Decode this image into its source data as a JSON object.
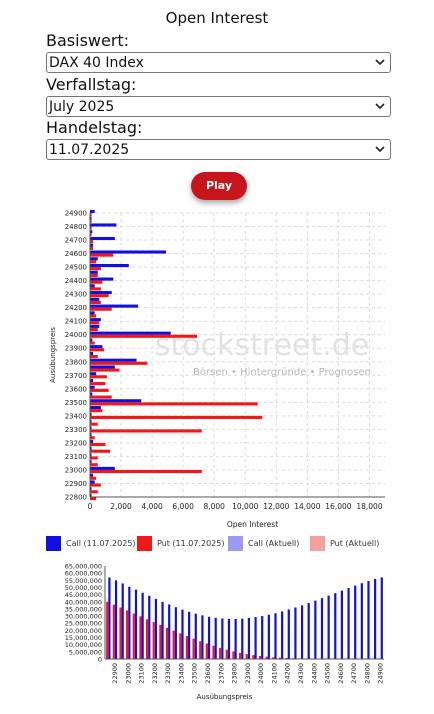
{
  "page": {
    "title": "Open Interest"
  },
  "form": {
    "underlying_label": "Basiswert:",
    "underlying_value": "DAX 40 Index",
    "expiry_label": "Verfallstag:",
    "expiry_value": "July 2025",
    "tradeday_label": "Handelstag:",
    "tradeday_value": "11.07.2025",
    "play_label": "Play"
  },
  "watermark": {
    "brand": "stockstreet.de",
    "tagline": "Börsen • Hintergründe • Prognosen"
  },
  "colors": {
    "call": "#1010e0",
    "put": "#f01818",
    "call_current": "#9a9af0",
    "put_current": "#f4a0a0",
    "accent": "#c8141b"
  },
  "chart_data": [
    {
      "type": "bar",
      "orientation": "horizontal",
      "xlabel": "Open Interest",
      "ylabel": "Ausübungspreis",
      "xlim": [
        0,
        19000
      ],
      "xticks": [
        0,
        2000,
        4000,
        6000,
        8000,
        10000,
        12000,
        14000,
        16000,
        18000
      ],
      "xtick_labels": [
        "0",
        "2,000",
        "4,000",
        "6,000",
        "8,000",
        "10,000",
        "12,000",
        "14,000",
        "16,000",
        "18,000"
      ],
      "ytick_labels": [
        "24900",
        "24800",
        "24700",
        "24600",
        "24500",
        "24400",
        "24300",
        "24200",
        "24100",
        "24000",
        "23900",
        "23800",
        "23700",
        "23600",
        "23500",
        "23400",
        "23300",
        "23200",
        "23100",
        "23000",
        "22900",
        "22800"
      ],
      "categories": [
        24900,
        24850,
        24800,
        24750,
        24700,
        24650,
        24600,
        24550,
        24500,
        24450,
        24400,
        24350,
        24300,
        24250,
        24200,
        24150,
        24100,
        24050,
        24000,
        23950,
        23900,
        23850,
        23800,
        23750,
        23700,
        23650,
        23600,
        23550,
        23500,
        23450,
        23400,
        23350,
        23300,
        23250,
        23200,
        23150,
        23100,
        23050,
        23000,
        22950,
        22900,
        22850,
        22800
      ],
      "grid": true,
      "series": [
        {
          "name": "Call (11.07.2025)",
          "values": [
            300,
            100,
            1700,
            150,
            1600,
            200,
            4900,
            500,
            2500,
            500,
            1500,
            300,
            1400,
            600,
            3100,
            300,
            700,
            600,
            5200,
            150,
            800,
            200,
            3000,
            1600,
            400,
            200,
            300,
            150,
            3300,
            700,
            100,
            100,
            100,
            100,
            200,
            100,
            100,
            100,
            1600,
            200,
            300,
            100,
            100
          ]
        },
        {
          "name": "Put (11.07.2025)",
          "values": [
            100,
            100,
            100,
            100,
            200,
            200,
            1500,
            400,
            700,
            500,
            800,
            700,
            1200,
            700,
            1400,
            400,
            600,
            500,
            6900,
            300,
            900,
            500,
            3700,
            1900,
            1100,
            1000,
            1200,
            1400,
            10800,
            800,
            11100,
            500,
            7200,
            300,
            1000,
            1300,
            500,
            500,
            7200,
            400,
            700,
            500,
            400
          ]
        }
      ]
    },
    {
      "type": "bar",
      "xlabel": "Ausübungspreis",
      "ylabel": "",
      "ylim": [
        0,
        65000000
      ],
      "yticks": [
        0,
        5000000,
        10000000,
        15000000,
        20000000,
        25000000,
        30000000,
        35000000,
        40000000,
        45000000,
        50000000,
        55000000,
        60000000,
        65000000
      ],
      "ytick_labels": [
        "0",
        "5,000,000",
        "10,000,000",
        "15,000,000",
        "20,000,000",
        "25,000,000",
        "30,000,000",
        "35,000,000",
        "40,000,000",
        "45,000,000",
        "50,000,000",
        "55,000,000",
        "60,000,000",
        "65,000,000"
      ],
      "xtick_labels": [
        "22900",
        "23000",
        "23100",
        "23200",
        "23300",
        "23400",
        "23500",
        "23600",
        "23700",
        "23800",
        "23900",
        "24000",
        "24100",
        "24200",
        "24300",
        "24400",
        "24500",
        "24600",
        "24700",
        "24800",
        "24900"
      ],
      "categories": [
        22850,
        22900,
        22950,
        23000,
        23050,
        23100,
        23150,
        23200,
        23250,
        23300,
        23350,
        23400,
        23450,
        23500,
        23550,
        23600,
        23650,
        23700,
        23750,
        23800,
        23850,
        23900,
        23950,
        24000,
        24050,
        24100,
        24150,
        24200,
        24250,
        24300,
        24350,
        24400,
        24450,
        24500,
        24550,
        24600,
        24650,
        24700,
        24750,
        24800,
        24850,
        24900
      ],
      "series": [
        {
          "name": "Call (11.07.2025)",
          "values": [
            57000000,
            55000000,
            52800000,
            50500000,
            48500000,
            46300000,
            44200000,
            42000000,
            40000000,
            38100000,
            36200000,
            34500000,
            33000000,
            31700000,
            30500000,
            29500000,
            28800000,
            28300000,
            28000000,
            28000000,
            28200000,
            28700000,
            29300000,
            30000000,
            30900000,
            32000000,
            33200000,
            34600000,
            36000000,
            37500000,
            39100000,
            40800000,
            42500000,
            44300000,
            46000000,
            47800000,
            49600000,
            51300000,
            53000000,
            54500000,
            56000000,
            57000000
          ]
        },
        {
          "name": "Put (11.07.2025)",
          "values": [
            40000000,
            38000000,
            36000000,
            34000000,
            31800000,
            29800000,
            27800000,
            25800000,
            23800000,
            21800000,
            19800000,
            17900000,
            16000000,
            14200000,
            12400000,
            10800000,
            9300000,
            7800000,
            6500000,
            5300000,
            4300000,
            3400000,
            2700000,
            2100000,
            1600000,
            1200000,
            900000,
            700000,
            500000,
            400000,
            300000,
            250000,
            200000,
            150000,
            100000,
            80000,
            60000,
            50000,
            40000,
            30000,
            20000,
            10000
          ]
        }
      ]
    }
  ],
  "legend": {
    "items": [
      {
        "label": "Call (11.07.2025)"
      },
      {
        "label": "Put (11.07.2025)"
      },
      {
        "label": "Call (Aktuell)"
      },
      {
        "label": "Put (Aktuell)"
      }
    ]
  }
}
